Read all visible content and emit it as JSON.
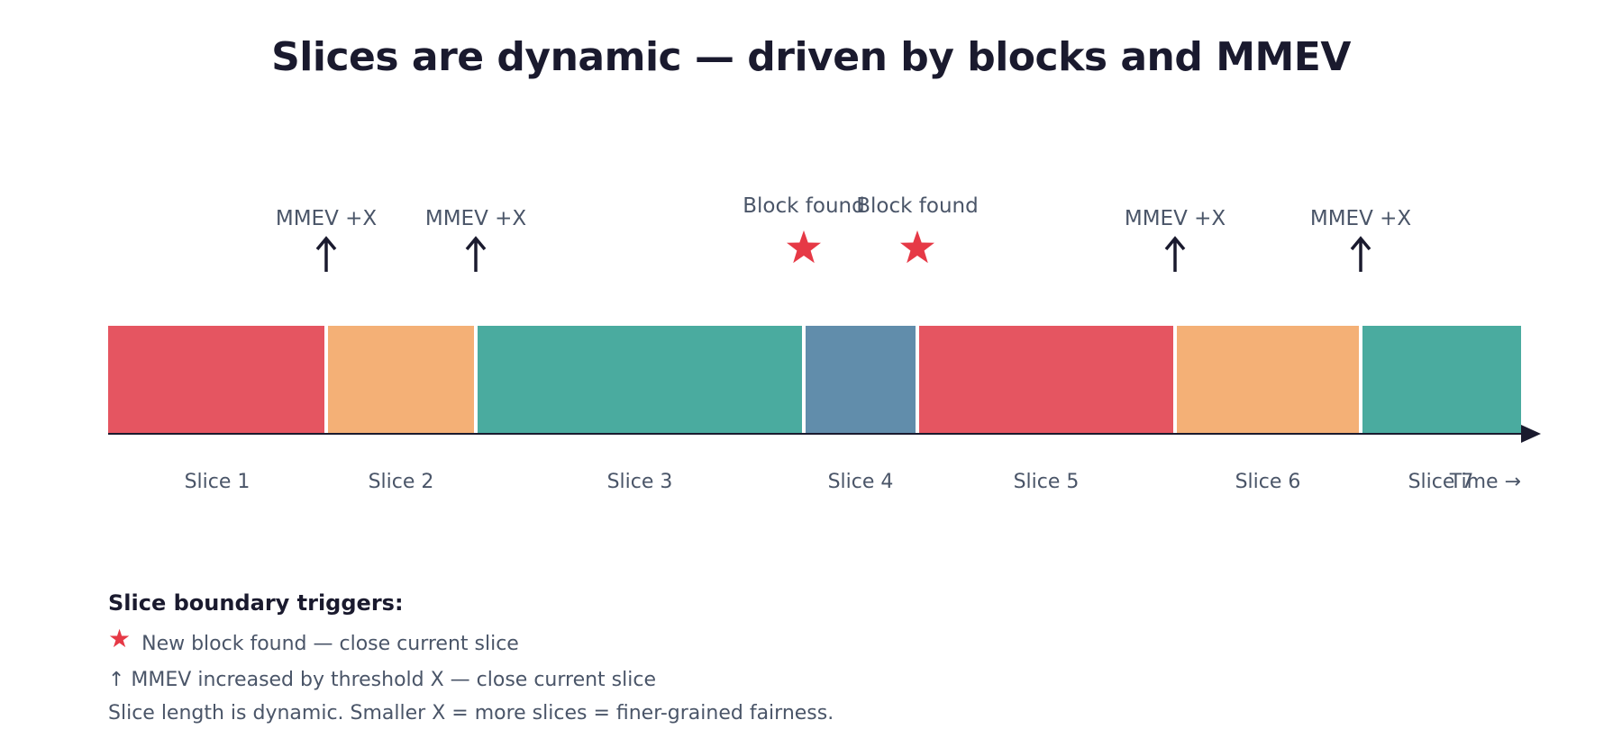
{
  "title": "Slices are dynamic — driven by blocks and MMEV",
  "timeline": {
    "axis_label": "Time →",
    "slices": [
      {
        "label": "Slice 1",
        "color": "#e55561"
      },
      {
        "label": "Slice 2",
        "color": "#f4b076"
      },
      {
        "label": "Slice 3",
        "color": "#4aab9f"
      },
      {
        "label": "Slice 4",
        "color": "#618dab"
      },
      {
        "label": "Slice 5",
        "color": "#e55561"
      },
      {
        "label": "Slice 6",
        "color": "#f4b076"
      },
      {
        "label": "Slice 7",
        "color": "#4aab9f"
      }
    ],
    "boundaries": [
      {
        "type": "mmev",
        "label": "MMEV +X",
        "icon": "up-arrow-icon"
      },
      {
        "type": "mmev",
        "label": "MMEV +X",
        "icon": "up-arrow-icon"
      },
      {
        "type": "block",
        "label": "Block found",
        "icon": "star-icon"
      },
      {
        "type": "block",
        "label": "Block found",
        "icon": "star-icon"
      },
      {
        "type": "mmev",
        "label": "MMEV +X",
        "icon": "up-arrow-icon"
      },
      {
        "type": "mmev",
        "label": "MMEV +X",
        "icon": "up-arrow-icon"
      }
    ],
    "colors": {
      "star": "#e63946",
      "arrow": "#1a1a2e",
      "axis": "#1a1a2e",
      "label": "#4a5568"
    }
  },
  "legend": {
    "heading": "Slice boundary triggers:",
    "block_text": "New block found — close current slice",
    "mmev_text": "↑ MMEV increased by threshold X — close current slice",
    "note": "Slice length is dynamic. Smaller X = more slices = finer-grained fairness."
  }
}
